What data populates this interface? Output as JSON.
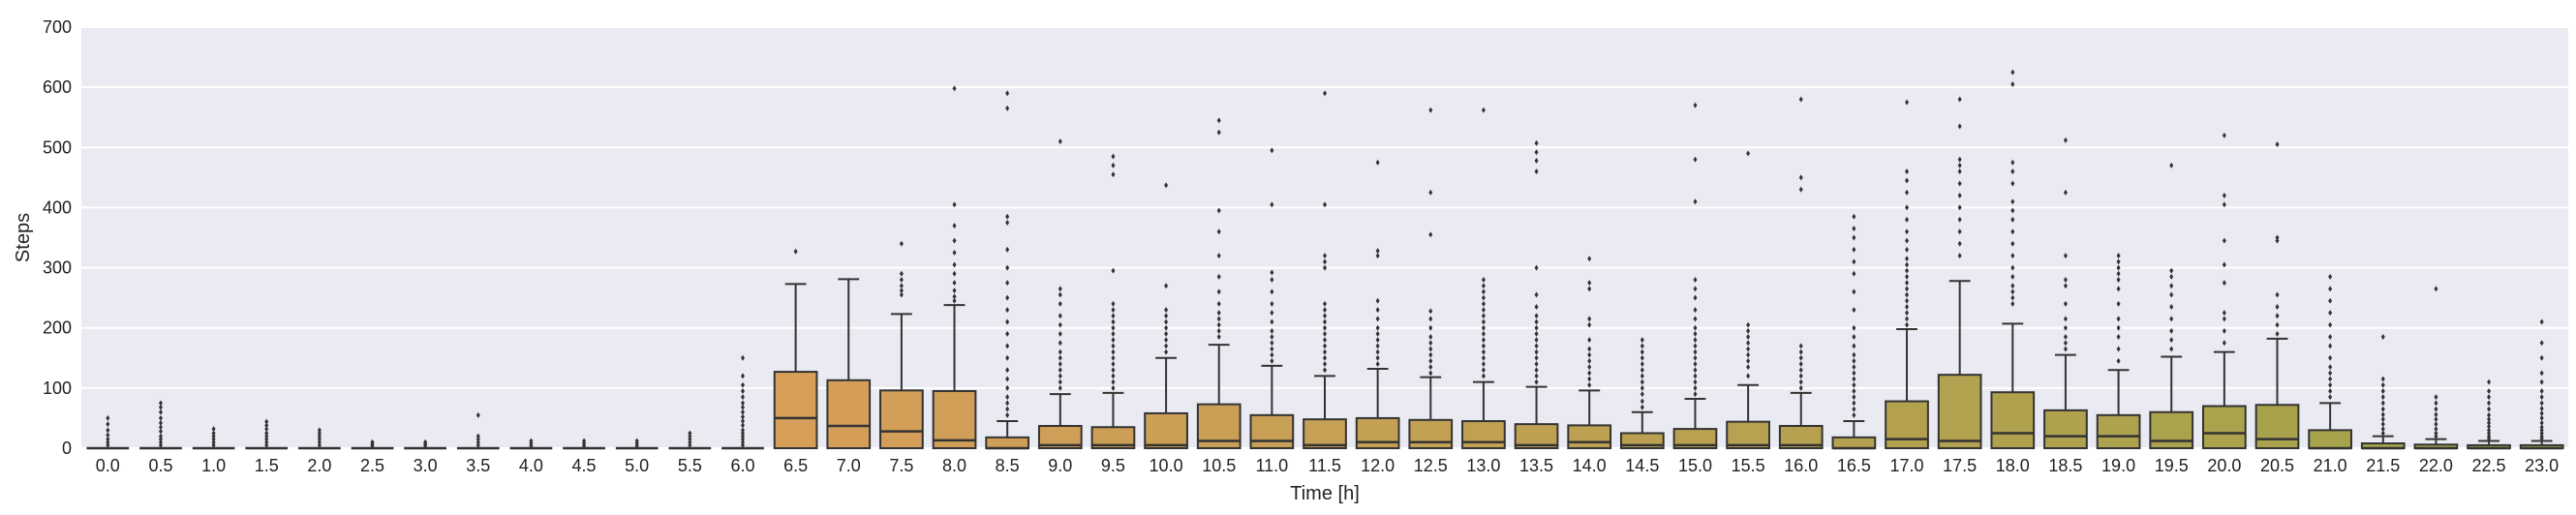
{
  "chart_data": {
    "type": "boxplot",
    "xlabel": "Time [h]",
    "ylabel": "Steps",
    "ylim": [
      0,
      700
    ],
    "yticks": [
      0,
      100,
      200,
      300,
      400,
      500,
      600,
      700
    ],
    "grid": true,
    "background": "#eaeaf2",
    "gridColor": "#ffffff",
    "lineColor": "#333333",
    "categories": [
      "0.0",
      "0.5",
      "1.0",
      "1.5",
      "2.0",
      "2.5",
      "3.0",
      "3.5",
      "4.0",
      "4.5",
      "5.0",
      "5.5",
      "6.0",
      "6.5",
      "7.0",
      "7.5",
      "8.0",
      "8.5",
      "9.0",
      "9.5",
      "10.0",
      "10.5",
      "11.0",
      "11.5",
      "12.0",
      "12.5",
      "13.0",
      "13.5",
      "14.0",
      "14.5",
      "15.0",
      "15.5",
      "16.0",
      "16.5",
      "17.0",
      "17.5",
      "18.0",
      "18.5",
      "19.0",
      "19.5",
      "20.0",
      "20.5",
      "21.0",
      "21.5",
      "22.0",
      "22.5",
      "23.0"
    ],
    "boxes": [
      {
        "q1": 0,
        "median": 0,
        "q3": 0,
        "whislo": 0,
        "whishi": 0,
        "outliers": [
          5,
          10,
          15,
          22,
          30,
          40,
          50
        ]
      },
      {
        "q1": 0,
        "median": 0,
        "q3": 0,
        "whislo": 0,
        "whishi": 0,
        "outliers": [
          5,
          10,
          15,
          20,
          28,
          35,
          42,
          50,
          60,
          68,
          75
        ]
      },
      {
        "q1": 0,
        "median": 0,
        "q3": 0,
        "whislo": 0,
        "whishi": 0,
        "outliers": [
          5,
          10,
          15,
          20,
          25,
          32
        ]
      },
      {
        "q1": 0,
        "median": 0,
        "q3": 0,
        "whislo": 0,
        "whishi": 0,
        "outliers": [
          5,
          10,
          15,
          20,
          25,
          32,
          38,
          44
        ]
      },
      {
        "q1": 0,
        "median": 0,
        "q3": 0,
        "whislo": 0,
        "whishi": 0,
        "outliers": [
          5,
          10,
          15,
          20,
          25,
          30
        ]
      },
      {
        "q1": 0,
        "median": 0,
        "q3": 0,
        "whislo": 0,
        "whishi": 0,
        "outliers": [
          4,
          7,
          10
        ]
      },
      {
        "q1": 0,
        "median": 0,
        "q3": 0,
        "whislo": 0,
        "whishi": 0,
        "outliers": [
          4,
          7,
          10
        ]
      },
      {
        "q1": 0,
        "median": 0,
        "q3": 0,
        "whislo": 0,
        "whishi": 0,
        "outliers": [
          5,
          10,
          15,
          20,
          55
        ]
      },
      {
        "q1": 0,
        "median": 0,
        "q3": 0,
        "whislo": 0,
        "whishi": 0,
        "outliers": [
          4,
          8,
          12
        ]
      },
      {
        "q1": 0,
        "median": 0,
        "q3": 0,
        "whislo": 0,
        "whishi": 0,
        "outliers": [
          4,
          8,
          12
        ]
      },
      {
        "q1": 0,
        "median": 0,
        "q3": 0,
        "whislo": 0,
        "whishi": 0,
        "outliers": [
          4,
          8,
          12
        ]
      },
      {
        "q1": 0,
        "median": 0,
        "q3": 0,
        "whislo": 0,
        "whishi": 0,
        "outliers": [
          5,
          10,
          15,
          20,
          25
        ]
      },
      {
        "q1": 0,
        "median": 0,
        "q3": 0,
        "whislo": 0,
        "whishi": 0,
        "outliers": [
          5,
          10,
          15,
          20,
          25,
          30,
          38,
          45,
          52,
          60,
          68,
          75,
          85,
          95,
          105,
          120,
          150
        ]
      },
      {
        "q1": 0,
        "median": 50,
        "q3": 127,
        "whislo": 0,
        "whishi": 273,
        "outliers": [
          327
        ]
      },
      {
        "q1": 0,
        "median": 37,
        "q3": 113,
        "whislo": 0,
        "whishi": 281,
        "outliers": []
      },
      {
        "q1": 0,
        "median": 28,
        "q3": 96,
        "whislo": 0,
        "whishi": 223,
        "outliers": [
          255,
          262,
          270,
          280,
          290,
          340
        ]
      },
      {
        "q1": 0,
        "median": 13,
        "q3": 95,
        "whislo": 0,
        "whishi": 238,
        "outliers": [
          245,
          252,
          262,
          275,
          290,
          305,
          325,
          345,
          370,
          405,
          598
        ]
      },
      {
        "q1": 0,
        "median": 0,
        "q3": 18,
        "whislo": 0,
        "whishi": 45,
        "outliers": [
          55,
          65,
          75,
          85,
          100,
          115,
          130,
          150,
          170,
          190,
          210,
          230,
          250,
          275,
          300,
          330,
          375,
          385,
          565,
          590
        ]
      },
      {
        "q1": 0,
        "median": 5,
        "q3": 37,
        "whislo": 0,
        "whishi": 90,
        "outliers": [
          100,
          110,
          120,
          130,
          140,
          150,
          160,
          175,
          190,
          205,
          220,
          240,
          255,
          265,
          510
        ]
      },
      {
        "q1": 0,
        "median": 5,
        "q3": 35,
        "whislo": 0,
        "whishi": 92,
        "outliers": [
          100,
          110,
          120,
          130,
          140,
          150,
          160,
          170,
          180,
          190,
          200,
          210,
          220,
          230,
          240,
          295,
          455,
          470,
          485
        ]
      },
      {
        "q1": 0,
        "median": 5,
        "q3": 58,
        "whislo": 0,
        "whishi": 150,
        "outliers": [
          160,
          170,
          180,
          190,
          200,
          210,
          220,
          230,
          270,
          437
        ]
      },
      {
        "q1": 0,
        "median": 12,
        "q3": 73,
        "whislo": 0,
        "whishi": 172,
        "outliers": [
          185,
          195,
          205,
          215,
          225,
          240,
          260,
          285,
          320,
          360,
          395,
          525,
          545
        ]
      },
      {
        "q1": 0,
        "median": 12,
        "q3": 55,
        "whislo": 0,
        "whishi": 137,
        "outliers": [
          145,
          155,
          165,
          175,
          185,
          195,
          210,
          225,
          240,
          260,
          280,
          292,
          405,
          495
        ]
      },
      {
        "q1": 0,
        "median": 5,
        "q3": 48,
        "whislo": 0,
        "whishi": 120,
        "outliers": [
          130,
          140,
          150,
          160,
          170,
          180,
          190,
          200,
          210,
          220,
          230,
          240,
          300,
          310,
          320,
          405,
          590
        ]
      },
      {
        "q1": 0,
        "median": 10,
        "q3": 50,
        "whislo": 0,
        "whishi": 132,
        "outliers": [
          140,
          150,
          160,
          170,
          180,
          190,
          200,
          215,
          230,
          245,
          320,
          328,
          475
        ]
      },
      {
        "q1": 0,
        "median": 10,
        "q3": 47,
        "whislo": 0,
        "whishi": 118,
        "outliers": [
          125,
          135,
          145,
          155,
          165,
          175,
          185,
          200,
          215,
          228,
          355,
          425,
          562
        ]
      },
      {
        "q1": 0,
        "median": 10,
        "q3": 45,
        "whislo": 0,
        "whishi": 110,
        "outliers": [
          120,
          130,
          140,
          150,
          160,
          170,
          180,
          190,
          200,
          210,
          220,
          230,
          240,
          250,
          260,
          270,
          280,
          562
        ]
      },
      {
        "q1": 0,
        "median": 5,
        "q3": 40,
        "whislo": 0,
        "whishi": 102,
        "outliers": [
          110,
          120,
          130,
          140,
          150,
          160,
          170,
          180,
          190,
          200,
          210,
          220,
          235,
          255,
          300,
          460,
          478,
          492,
          507
        ]
      },
      {
        "q1": 0,
        "median": 10,
        "q3": 38,
        "whislo": 0,
        "whishi": 96,
        "outliers": [
          105,
          115,
          125,
          135,
          145,
          155,
          165,
          180,
          205,
          215,
          265,
          275,
          315
        ]
      },
      {
        "q1": 0,
        "median": 5,
        "q3": 25,
        "whislo": 0,
        "whishi": 60,
        "outliers": [
          68,
          78,
          90,
          100,
          110,
          120,
          130,
          140,
          150,
          160,
          170,
          180
        ]
      },
      {
        "q1": 0,
        "median": 5,
        "q3": 32,
        "whislo": 0,
        "whishi": 82,
        "outliers": [
          90,
          100,
          110,
          120,
          130,
          140,
          150,
          160,
          170,
          180,
          190,
          200,
          215,
          230,
          250,
          265,
          280,
          410,
          480,
          570
        ]
      },
      {
        "q1": 0,
        "median": 5,
        "q3": 44,
        "whislo": 0,
        "whishi": 105,
        "outliers": [
          120,
          135,
          145,
          155,
          165,
          175,
          185,
          195,
          205,
          490
        ]
      },
      {
        "q1": 0,
        "median": 5,
        "q3": 37,
        "whislo": 0,
        "whishi": 92,
        "outliers": [
          100,
          110,
          120,
          130,
          140,
          150,
          160,
          170,
          430,
          450,
          580
        ]
      },
      {
        "q1": 0,
        "median": 0,
        "q3": 18,
        "whislo": 0,
        "whishi": 45,
        "outliers": [
          55,
          65,
          75,
          85,
          95,
          105,
          115,
          125,
          135,
          145,
          155,
          170,
          185,
          200,
          230,
          260,
          290,
          310,
          330,
          350,
          365,
          385
        ]
      },
      {
        "q1": 0,
        "median": 15,
        "q3": 78,
        "whislo": 0,
        "whishi": 198,
        "outliers": [
          205,
          215,
          225,
          235,
          245,
          255,
          265,
          275,
          285,
          295,
          305,
          315,
          330,
          345,
          360,
          380,
          400,
          425,
          445,
          460,
          575
        ]
      },
      {
        "q1": 0,
        "median": 12,
        "q3": 122,
        "whislo": 0,
        "whishi": 278,
        "outliers": [
          320,
          340,
          360,
          380,
          400,
          420,
          440,
          460,
          470,
          480,
          535,
          580
        ]
      },
      {
        "q1": 0,
        "median": 25,
        "q3": 93,
        "whislo": 0,
        "whishi": 207,
        "outliers": [
          240,
          250,
          260,
          270,
          285,
          300,
          320,
          340,
          360,
          380,
          395,
          410,
          440,
          460,
          475,
          605,
          625
        ]
      },
      {
        "q1": 0,
        "median": 20,
        "q3": 63,
        "whislo": 0,
        "whishi": 155,
        "outliers": [
          165,
          175,
          185,
          200,
          215,
          240,
          270,
          280,
          320,
          425,
          512
        ]
      },
      {
        "q1": 0,
        "median": 20,
        "q3": 55,
        "whislo": 0,
        "whishi": 130,
        "outliers": [
          145,
          165,
          185,
          200,
          215,
          240,
          265,
          280,
          290,
          300,
          310,
          320
        ]
      },
      {
        "q1": 0,
        "median": 12,
        "q3": 60,
        "whislo": 0,
        "whishi": 152,
        "outliers": [
          165,
          180,
          195,
          215,
          235,
          255,
          270,
          285,
          295,
          470
        ]
      },
      {
        "q1": 0,
        "median": 25,
        "q3": 70,
        "whislo": 0,
        "whishi": 160,
        "outliers": [
          175,
          195,
          215,
          225,
          275,
          305,
          345,
          405,
          420,
          520
        ]
      },
      {
        "q1": 0,
        "median": 15,
        "q3": 72,
        "whislo": 0,
        "whishi": 182,
        "outliers": [
          190,
          205,
          220,
          235,
          255,
          345,
          350,
          505
        ]
      },
      {
        "q1": 0,
        "median": 0,
        "q3": 30,
        "whislo": 0,
        "whishi": 75,
        "outliers": [
          85,
          95,
          105,
          115,
          125,
          135,
          150,
          170,
          185,
          205,
          225,
          245,
          265,
          285
        ]
      },
      {
        "q1": 0,
        "median": 0,
        "q3": 8,
        "whislo": 0,
        "whishi": 20,
        "outliers": [
          25,
          32,
          40,
          48,
          56,
          65,
          75,
          85,
          95,
          105,
          115,
          185
        ]
      },
      {
        "q1": 0,
        "median": 0,
        "q3": 6,
        "whislo": 0,
        "whishi": 15,
        "outliers": [
          20,
          25,
          32,
          40,
          48,
          56,
          65,
          75,
          85,
          265
        ]
      },
      {
        "q1": 0,
        "median": 0,
        "q3": 5,
        "whislo": 0,
        "whishi": 12,
        "outliers": [
          16,
          20,
          25,
          30,
          36,
          42,
          48,
          55,
          65,
          75,
          85,
          95,
          110
        ]
      },
      {
        "q1": 0,
        "median": 0,
        "q3": 5,
        "whislo": 0,
        "whishi": 12,
        "outliers": [
          16,
          20,
          25,
          30,
          35,
          42,
          50,
          58,
          66,
          75,
          85,
          95,
          110,
          125,
          150,
          175,
          210
        ]
      }
    ]
  }
}
